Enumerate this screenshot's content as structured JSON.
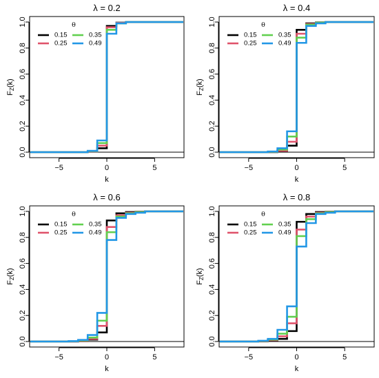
{
  "colors": {
    "0.15": "#000000",
    "0.25": "#DF536B",
    "0.35": "#61D04F",
    "0.49": "#2297E6"
  },
  "chart_data": [
    {
      "type": "line",
      "step": true,
      "title": "λ = 0.2",
      "xlabel": "k",
      "ylabel": "F_Z(k)",
      "xlim": [
        -8,
        8
      ],
      "ylim": [
        0,
        1
      ],
      "x_ticks": [
        -5,
        0,
        5
      ],
      "y_ticks": [
        0.0,
        0.2,
        0.4,
        0.6,
        0.8,
        1.0
      ],
      "legend": {
        "title": "θ",
        "position": "top-left"
      },
      "series": [
        {
          "name": "0.15",
          "x": [
            -8,
            -2,
            -1,
            0,
            1,
            2,
            8
          ],
          "y": [
            0.0,
            0.005,
            0.03,
            0.97,
            0.995,
            1.0,
            1.0
          ]
        },
        {
          "name": "0.25",
          "x": [
            -8,
            -2,
            -1,
            0,
            1,
            2,
            8
          ],
          "y": [
            0.0,
            0.006,
            0.05,
            0.96,
            0.993,
            1.0,
            1.0
          ]
        },
        {
          "name": "0.35",
          "x": [
            -8,
            -2,
            -1,
            0,
            1,
            2,
            8
          ],
          "y": [
            0.0,
            0.008,
            0.07,
            0.94,
            0.99,
            1.0,
            1.0
          ]
        },
        {
          "name": "0.49",
          "x": [
            -8,
            -2,
            -1,
            0,
            1,
            2,
            8
          ],
          "y": [
            0.0,
            0.01,
            0.09,
            0.91,
            0.99,
            1.0,
            1.0
          ]
        }
      ]
    },
    {
      "type": "line",
      "step": true,
      "title": "λ = 0.4",
      "xlabel": "k",
      "ylabel": "F_Z(k)",
      "xlim": [
        -8,
        8
      ],
      "ylim": [
        0,
        1
      ],
      "x_ticks": [
        -5,
        0,
        5
      ],
      "y_ticks": [
        0.0,
        0.2,
        0.4,
        0.6,
        0.8,
        1.0
      ],
      "legend": {
        "title": "θ",
        "position": "top-left"
      },
      "series": [
        {
          "name": "0.15",
          "x": [
            -8,
            -3,
            -2,
            -1,
            0,
            1,
            2,
            3,
            8
          ],
          "y": [
            0.0,
            0.0,
            0.005,
            0.05,
            0.94,
            0.99,
            0.997,
            1.0,
            1.0
          ]
        },
        {
          "name": "0.25",
          "x": [
            -8,
            -3,
            -2,
            -1,
            0,
            1,
            2,
            3,
            8
          ],
          "y": [
            0.0,
            0.002,
            0.01,
            0.08,
            0.91,
            0.985,
            0.995,
            1.0,
            1.0
          ]
        },
        {
          "name": "0.35",
          "x": [
            -8,
            -3,
            -2,
            -1,
            0,
            1,
            2,
            3,
            8
          ],
          "y": [
            0.0,
            0.003,
            0.02,
            0.12,
            0.88,
            0.98,
            0.995,
            1.0,
            1.0
          ]
        },
        {
          "name": "0.49",
          "x": [
            -8,
            -3,
            -2,
            -1,
            0,
            1,
            2,
            3,
            8
          ],
          "y": [
            0.0,
            0.005,
            0.03,
            0.16,
            0.84,
            0.97,
            0.99,
            1.0,
            1.0
          ]
        }
      ]
    },
    {
      "type": "line",
      "step": true,
      "title": "λ = 0.6",
      "xlabel": "k",
      "ylabel": "F_Z(k)",
      "xlim": [
        -8,
        8
      ],
      "ylim": [
        0,
        1
      ],
      "x_ticks": [
        -5,
        0,
        5
      ],
      "y_ticks": [
        0.0,
        0.2,
        0.4,
        0.6,
        0.8,
        1.0
      ],
      "legend": {
        "title": "θ",
        "position": "top-left"
      },
      "series": [
        {
          "name": "0.15",
          "x": [
            -8,
            -4,
            -3,
            -2,
            -1,
            0,
            1,
            2,
            3,
            4,
            8
          ],
          "y": [
            0.0,
            0.0,
            0.003,
            0.015,
            0.07,
            0.93,
            0.985,
            0.995,
            0.998,
            1.0,
            1.0
          ]
        },
        {
          "name": "0.25",
          "x": [
            -8,
            -4,
            -3,
            -2,
            -1,
            0,
            1,
            2,
            3,
            4,
            8
          ],
          "y": [
            0.0,
            0.001,
            0.005,
            0.02,
            0.12,
            0.88,
            0.97,
            0.99,
            0.997,
            1.0,
            1.0
          ]
        },
        {
          "name": "0.35",
          "x": [
            -8,
            -4,
            -3,
            -2,
            -1,
            0,
            1,
            2,
            3,
            4,
            8
          ],
          "y": [
            0.0,
            0.002,
            0.008,
            0.03,
            0.16,
            0.84,
            0.96,
            0.985,
            0.995,
            1.0,
            1.0
          ]
        },
        {
          "name": "0.49",
          "x": [
            -8,
            -4,
            -3,
            -2,
            -1,
            0,
            1,
            2,
            3,
            4,
            8
          ],
          "y": [
            0.0,
            0.003,
            0.012,
            0.05,
            0.22,
            0.78,
            0.95,
            0.98,
            0.99,
            1.0,
            1.0
          ]
        }
      ]
    },
    {
      "type": "line",
      "step": true,
      "title": "λ = 0.8",
      "xlabel": "k",
      "ylabel": "F_Z(k)",
      "xlim": [
        -8,
        8
      ],
      "ylim": [
        0,
        1
      ],
      "x_ticks": [
        -5,
        0,
        5
      ],
      "y_ticks": [
        0.0,
        0.2,
        0.4,
        0.6,
        0.8,
        1.0
      ],
      "legend": {
        "title": "θ",
        "position": "top-left"
      },
      "series": [
        {
          "name": "0.15",
          "x": [
            -8,
            -4,
            -3,
            -2,
            -1,
            0,
            1,
            2,
            3,
            4,
            8
          ],
          "y": [
            0.0,
            0.001,
            0.005,
            0.02,
            0.08,
            0.92,
            0.98,
            0.995,
            0.998,
            1.0,
            1.0
          ]
        },
        {
          "name": "0.25",
          "x": [
            -8,
            -4,
            -3,
            -2,
            -1,
            0,
            1,
            2,
            3,
            4,
            8
          ],
          "y": [
            0.0,
            0.002,
            0.01,
            0.04,
            0.14,
            0.86,
            0.96,
            0.99,
            0.997,
            1.0,
            1.0
          ]
        },
        {
          "name": "0.35",
          "x": [
            -8,
            -4,
            -3,
            -2,
            -1,
            0,
            1,
            2,
            3,
            4,
            8
          ],
          "y": [
            0.0,
            0.004,
            0.015,
            0.06,
            0.19,
            0.81,
            0.94,
            0.985,
            0.995,
            1.0,
            1.0
          ]
        },
        {
          "name": "0.49",
          "x": [
            -8,
            -4,
            -3,
            -2,
            -1,
            0,
            1,
            2,
            3,
            4,
            8
          ],
          "y": [
            0.0,
            0.006,
            0.02,
            0.09,
            0.27,
            0.73,
            0.91,
            0.98,
            0.99,
            1.0,
            1.0
          ]
        }
      ]
    }
  ]
}
